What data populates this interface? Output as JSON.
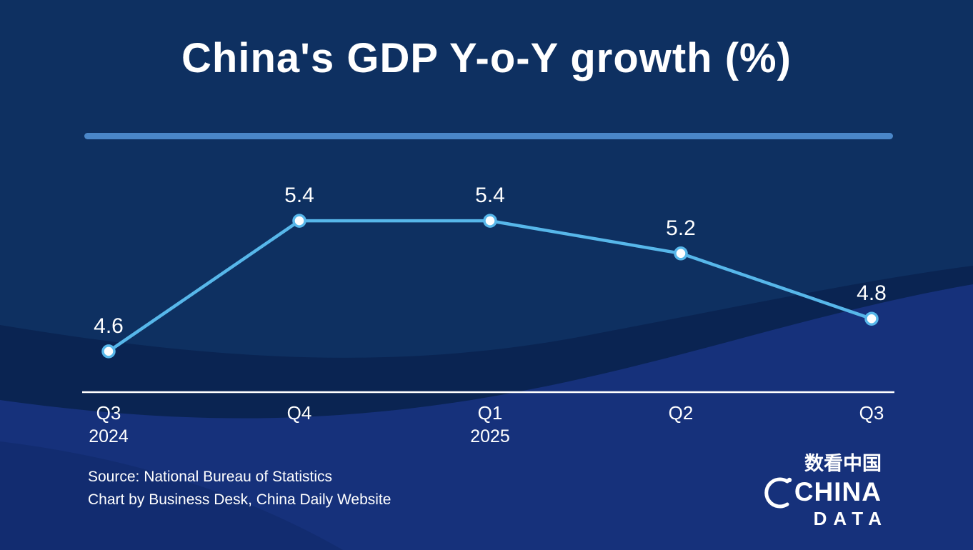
{
  "title": "China's GDP Y-o-Y growth (%)",
  "chart_data": {
    "type": "line",
    "title": "China's GDP Y-o-Y growth (%)",
    "categories": [
      "Q3",
      "Q4",
      "Q1",
      "Q2",
      "Q3"
    ],
    "category_sub_labels": [
      "2024",
      "",
      "2025",
      "",
      ""
    ],
    "values": [
      4.6,
      5.4,
      5.4,
      5.2,
      4.8
    ],
    "data_labels": [
      "4.6",
      "5.4",
      "5.4",
      "5.2",
      "4.8"
    ],
    "unit": "%",
    "ylim": [
      4.35,
      5.79
    ],
    "grid": false,
    "legend": "none",
    "line_color": "#57b7ea",
    "marker_fill": "#ffffff",
    "axis_color": "#ffffff"
  },
  "source": {
    "line1": "Source: National Bureau of Statistics",
    "line2": "Chart by Business Desk, China Daily Website"
  },
  "logo": {
    "chinese": "数看中国",
    "name_top": "CHINA",
    "name_bottom": "DATA"
  },
  "colors": {
    "background_top": "#0e3061",
    "wave_dark": "#0a2452",
    "wave_bright": "#16317b",
    "wave_corner": "#122c70",
    "divider": "#4a86c8",
    "accent_line": "#57b7ea"
  }
}
